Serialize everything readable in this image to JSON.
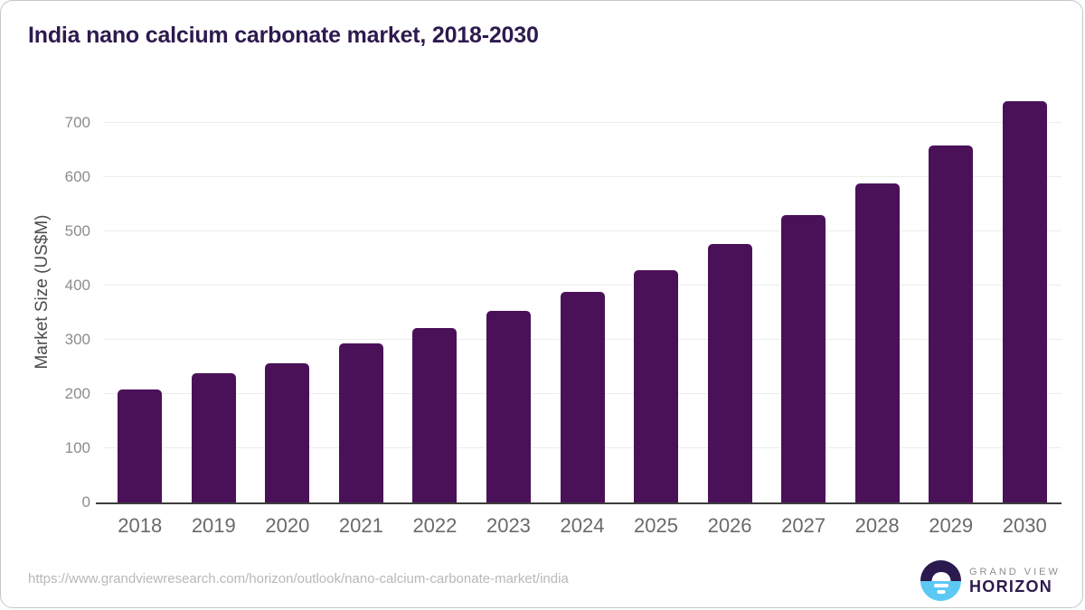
{
  "chart_data": {
    "type": "bar",
    "title": "India nano calcium carbonate market, 2018-2030",
    "xlabel": "",
    "ylabel": "Market Size (US$M)",
    "categories": [
      "2018",
      "2019",
      "2020",
      "2021",
      "2022",
      "2023",
      "2024",
      "2025",
      "2026",
      "2027",
      "2028",
      "2029",
      "2030"
    ],
    "values": [
      209,
      239,
      257,
      293,
      322,
      354,
      389,
      429,
      476,
      530,
      589,
      659,
      740
    ],
    "y_ticks": [
      0,
      100,
      200,
      300,
      400,
      500,
      600,
      700
    ],
    "ylim": [
      0,
      750
    ],
    "grid": "horizontal",
    "legend": "none",
    "bar_color": "#4a1159",
    "gridline_color": "#ececec",
    "axis_line_color": "#3d3d3d"
  },
  "footer": {
    "source_url": "https://www.grandviewresearch.com/horizon/outlook/nano-calcium-carbonate-market/india",
    "logo": {
      "top": "GRAND VIEW",
      "bottom": "HORIZON",
      "icon": "sunset-horizon-icon",
      "icon_colors": {
        "top_half": "#2b1a4d",
        "bottom_half": "#5cc9f5",
        "sun": "#ffffff"
      }
    }
  },
  "colors": {
    "title": "#2d1a4e",
    "bar": "#4a1159",
    "tick_label": "#8c8c8c",
    "x_label": "#6a6a6a",
    "source_url": "#b8b8b8"
  }
}
